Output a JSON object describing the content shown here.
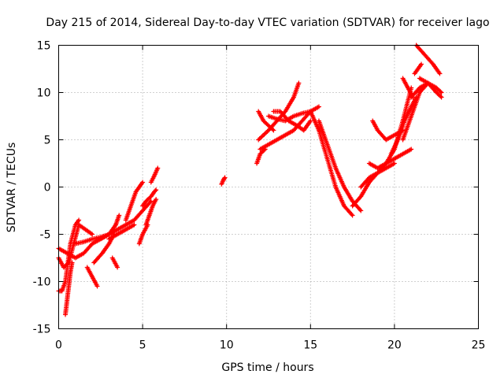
{
  "chart_data": {
    "type": "scatter",
    "title": "Day 215 of 2014, Sidereal Day-to-day VTEC variation (SDTVAR) for receiver lago",
    "xlabel": "GPS time / hours",
    "ylabel": "SDTVAR / TECUs",
    "xlim": [
      0,
      25
    ],
    "ylim": [
      -15,
      15
    ],
    "xticks": [
      "0",
      "5",
      "10",
      "15",
      "20",
      "25"
    ],
    "yticks": [
      "-15",
      "-10",
      "-5",
      "0",
      "5",
      "10",
      "15"
    ],
    "grid": true,
    "marker": "+",
    "series_color": "#ff0000",
    "series": [
      {
        "name": "s1",
        "x": [
          0.0,
          0.3,
          0.6,
          0.9,
          1.2,
          1.6,
          2.0
        ],
        "y": [
          -7.5,
          -8.5,
          -8.0,
          -6.0,
          -4.0,
          -4.5,
          -5.0
        ]
      },
      {
        "name": "s2",
        "x": [
          0.0,
          0.2,
          0.4,
          0.7,
          1.0,
          1.2
        ],
        "y": [
          -11.0,
          -11.0,
          -10.0,
          -6.0,
          -4.0,
          -3.5
        ]
      },
      {
        "name": "s3",
        "x": [
          0.4,
          0.5,
          0.6,
          0.7,
          0.8
        ],
        "y": [
          -13.5,
          -12.0,
          -10.5,
          -9.0,
          -8.0
        ]
      },
      {
        "name": "s4",
        "x": [
          0.0,
          0.5,
          1.0,
          1.5,
          2.0,
          2.5,
          3.0
        ],
        "y": [
          -6.5,
          -7.0,
          -7.5,
          -7.0,
          -6.0,
          -5.5,
          -5.0
        ]
      },
      {
        "name": "s5",
        "x": [
          1.0,
          1.5,
          2.0,
          2.5,
          3.0,
          3.5,
          4.0,
          4.5,
          5.0,
          5.5
        ],
        "y": [
          -6.0,
          -5.8,
          -5.5,
          -5.3,
          -5.0,
          -4.5,
          -4.0,
          -3.5,
          -2.5,
          -1.5
        ]
      },
      {
        "name": "s6",
        "x": [
          1.7,
          2.0,
          2.3
        ],
        "y": [
          -8.5,
          -9.5,
          -10.5
        ]
      },
      {
        "name": "s7",
        "x": [
          2.1,
          2.6,
          3.0,
          3.3
        ],
        "y": [
          -8.0,
          -7.0,
          -6.0,
          -5.0
        ]
      },
      {
        "name": "s8",
        "x": [
          2.5,
          3.0,
          3.4
        ],
        "y": [
          -5.5,
          -5.0,
          -4.0
        ]
      },
      {
        "name": "s9",
        "x": [
          3.0,
          3.5,
          4.0,
          4.5
        ],
        "y": [
          -5.5,
          -5.0,
          -4.5,
          -4.0
        ]
      },
      {
        "name": "s10",
        "x": [
          3.2,
          3.5
        ],
        "y": [
          -7.5,
          -8.5
        ]
      },
      {
        "name": "s11",
        "x": [
          3.4,
          3.6
        ],
        "y": [
          -4.0,
          -3.0
        ]
      },
      {
        "name": "s12",
        "x": [
          4.0,
          4.3,
          4.6,
          5.0
        ],
        "y": [
          -3.5,
          -2.0,
          -0.5,
          0.5
        ]
      },
      {
        "name": "s13",
        "x": [
          4.8,
          5.0,
          5.3
        ],
        "y": [
          -6.0,
          -5.0,
          -4.0
        ]
      },
      {
        "name": "s14",
        "x": [
          5.0,
          5.2,
          5.5,
          5.7,
          5.8
        ],
        "y": [
          -2.0,
          -1.5,
          -1.0,
          -0.5,
          -0.3
        ]
      },
      {
        "name": "s15",
        "x": [
          5.2,
          5.4,
          5.6,
          5.8
        ],
        "y": [
          -4.0,
          -3.0,
          -2.0,
          -1.3
        ]
      },
      {
        "name": "s16",
        "x": [
          5.5,
          5.7,
          5.9
        ],
        "y": [
          0.5,
          1.2,
          2.0
        ]
      },
      {
        "name": "s17",
        "x": [
          9.7,
          9.8,
          9.9
        ],
        "y": [
          0.3,
          0.7,
          1.0
        ]
      },
      {
        "name": "s18",
        "x": [
          11.8,
          12.0,
          12.3
        ],
        "y": [
          2.5,
          3.5,
          4.0
        ]
      },
      {
        "name": "s19",
        "x": [
          11.9,
          12.5,
          13.0,
          13.5,
          14.0,
          14.3
        ],
        "y": [
          5.0,
          6.0,
          7.0,
          8.0,
          9.5,
          11.0
        ]
      },
      {
        "name": "s20",
        "x": [
          12.0,
          12.5,
          13.0,
          13.5,
          14.0,
          14.5,
          15.0,
          15.5
        ],
        "y": [
          4.0,
          4.5,
          5.0,
          5.5,
          6.0,
          7.0,
          8.0,
          8.5
        ]
      },
      {
        "name": "s21",
        "x": [
          11.9,
          12.2,
          12.5,
          12.8
        ],
        "y": [
          8.0,
          7.0,
          6.5,
          6.0
        ]
      },
      {
        "name": "s22",
        "x": [
          12.5,
          13.0,
          13.5,
          14.0,
          14.5,
          15.0
        ],
        "y": [
          7.5,
          7.2,
          7.0,
          7.5,
          7.8,
          8.0
        ]
      },
      {
        "name": "s23",
        "x": [
          12.8,
          13.2,
          13.7,
          14.2,
          14.6,
          15.0
        ],
        "y": [
          8.0,
          8.0,
          7.0,
          6.5,
          6.0,
          7.0
        ]
      },
      {
        "name": "s24",
        "x": [
          15.0,
          15.5,
          16.0,
          16.5,
          17.0,
          17.5
        ],
        "y": [
          8.0,
          6.0,
          3.0,
          0.0,
          -2.0,
          -3.0
        ]
      },
      {
        "name": "s25",
        "x": [
          15.5,
          16.0,
          16.5,
          17.0,
          17.5,
          18.0
        ],
        "y": [
          7.0,
          4.5,
          2.0,
          0.0,
          -1.5,
          -2.5
        ]
      },
      {
        "name": "s26",
        "x": [
          17.5,
          18.0,
          18.5,
          19.0,
          19.5,
          20.0,
          20.5,
          21.0
        ],
        "y": [
          -2.0,
          -1.0,
          0.5,
          1.5,
          2.5,
          4.0,
          7.0,
          10.5
        ]
      },
      {
        "name": "s27",
        "x": [
          18.5,
          19.0,
          19.5,
          20.0,
          20.5,
          21.0
        ],
        "y": [
          2.5,
          2.0,
          2.5,
          3.0,
          3.5,
          4.0
        ]
      },
      {
        "name": "s28",
        "x": [
          18.0,
          18.5,
          19.0,
          19.5,
          20.0
        ],
        "y": [
          0.0,
          1.0,
          1.5,
          2.0,
          2.5
        ]
      },
      {
        "name": "s29",
        "x": [
          18.7,
          19.0,
          19.5,
          20.0,
          20.5
        ],
        "y": [
          7.0,
          6.0,
          5.0,
          5.5,
          6.0
        ]
      },
      {
        "name": "s30",
        "x": [
          19.8,
          20.2,
          20.6,
          21.0,
          21.3
        ],
        "y": [
          3.5,
          5.0,
          7.0,
          8.5,
          9.5
        ]
      },
      {
        "name": "s31",
        "x": [
          20.5,
          21.0,
          21.5,
          22.0
        ],
        "y": [
          5.0,
          7.5,
          10.0,
          11.0
        ]
      },
      {
        "name": "s32",
        "x": [
          21.0,
          21.5,
          22.0,
          22.5,
          22.8
        ],
        "y": [
          9.5,
          10.5,
          11.0,
          10.5,
          10.0
        ]
      },
      {
        "name": "s33",
        "x": [
          21.3,
          21.8,
          22.3,
          22.7
        ],
        "y": [
          15.0,
          14.0,
          13.0,
          12.0
        ]
      },
      {
        "name": "s34",
        "x": [
          20.5,
          20.8,
          21.1
        ],
        "y": [
          11.5,
          10.5,
          9.5
        ]
      },
      {
        "name": "s35",
        "x": [
          21.2,
          21.4,
          21.6
        ],
        "y": [
          12.0,
          12.5,
          13.0
        ]
      },
      {
        "name": "s36",
        "x": [
          21.5,
          22.0,
          22.5,
          22.8
        ],
        "y": [
          11.5,
          11.0,
          10.0,
          9.5
        ]
      }
    ]
  }
}
